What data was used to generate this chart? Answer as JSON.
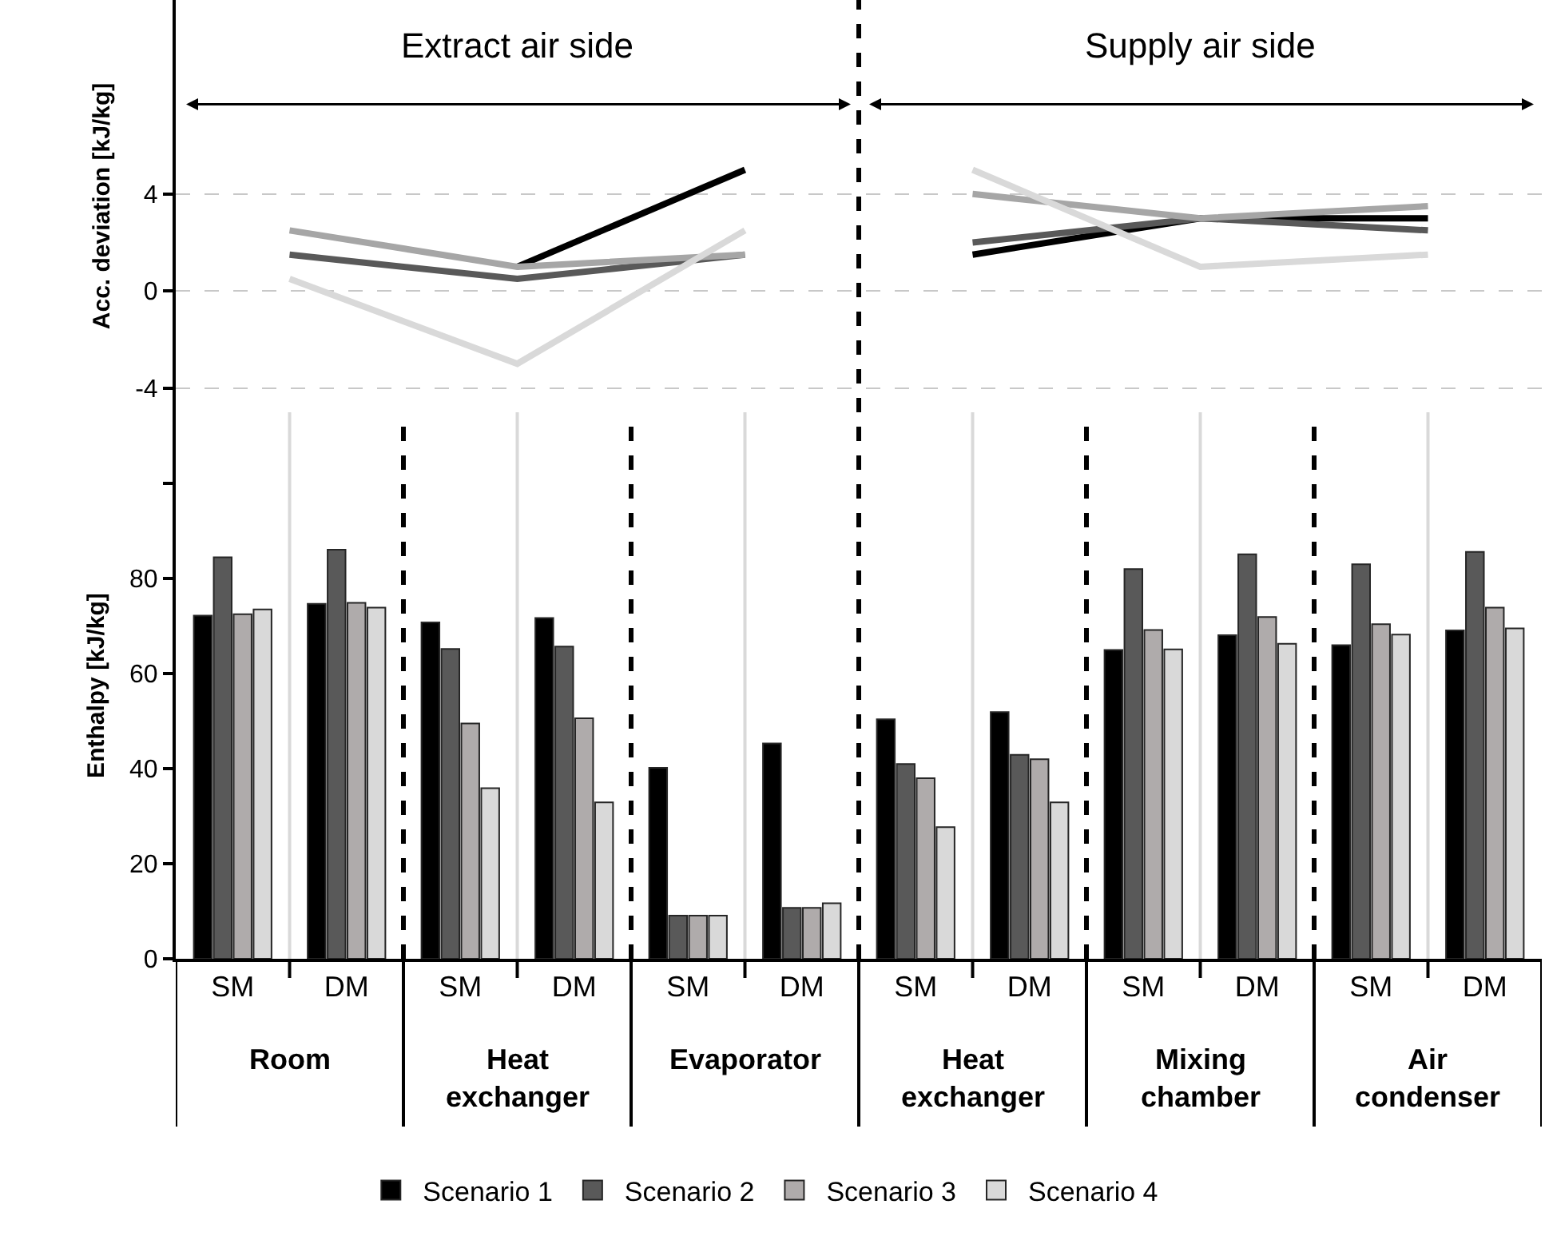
{
  "chart_data": [
    {
      "type": "line",
      "ylabel": "Acc. deviation [kJ/kg]",
      "categories": [
        null,
        null,
        null,
        null,
        null,
        null
      ],
      "ylim": [
        -5,
        12
      ],
      "yticks": [
        -4,
        0,
        4
      ],
      "grid": "y",
      "tick_labels": "y",
      "line_style": "solid",
      "marker": "none",
      "annotations": [
        "Extract air side",
        "Supply air side"
      ],
      "series": [
        {
          "color": "#000000",
          "values": [
            null,
            1.0,
            5.0,
            null,
            null,
            null
          ]
        },
        {
          "color": "#595959",
          "values": [
            1.5,
            0.5,
            1.5,
            null,
            null,
            null
          ]
        },
        {
          "color": "#a6a6a6",
          "values": [
            2.5,
            1.0,
            1.5,
            null,
            null,
            null
          ]
        },
        {
          "color": "#d9d9d9",
          "values": [
            0.5,
            -3.0,
            2.5,
            null,
            null,
            null
          ]
        },
        {
          "color": "#000000",
          "values": [
            null,
            null,
            null,
            1.5,
            3.0,
            3.0
          ]
        },
        {
          "color": "#595959",
          "values": [
            null,
            null,
            null,
            2.0,
            3.0,
            2.5
          ]
        },
        {
          "color": "#a6a6a6",
          "values": [
            null,
            null,
            null,
            4.0,
            3.0,
            3.5
          ]
        },
        {
          "color": "#d9d9d9",
          "values": [
            null,
            null,
            null,
            5.0,
            1.0,
            1.5
          ]
        }
      ]
    },
    {
      "type": "bar",
      "ylabel": "Enthalpy [kJ/kg]",
      "categories": [
        "SM",
        "DM",
        "SM",
        "DM",
        "SM",
        "DM",
        "SM",
        "DM",
        "SM",
        "DM",
        "SM",
        "DM"
      ],
      "ylim": [
        0,
        115
      ],
      "yticks": [
        0,
        20,
        40,
        60,
        80,
        {
          "value": 100,
          "label": null
        }
      ],
      "grid": false,
      "legend": "bottom",
      "annotations": [
        "Room",
        "Heat exchanger",
        "Evaporator",
        "Heat exchanger",
        "Mixing chamber",
        "Air condenser"
      ],
      "series": [
        {
          "name": "Scenario 1",
          "color": "#000000",
          "values": [
            72.2,
            74.7,
            70.8,
            71.7,
            40.2,
            45.3,
            50.4,
            51.9,
            65.0,
            68.1,
            66.0,
            69.1
          ]
        },
        {
          "name": "Scenario 2",
          "color": "#595959",
          "values": [
            84.5,
            86.1,
            65.2,
            65.7,
            9.1,
            10.7,
            41.0,
            42.9,
            82.0,
            85.1,
            83.0,
            85.6
          ]
        },
        {
          "name": "Scenario 3",
          "color": "#afabab",
          "values": [
            72.5,
            74.9,
            49.5,
            50.6,
            9.1,
            10.7,
            38.0,
            42.0,
            69.2,
            71.9,
            70.4,
            73.9
          ]
        },
        {
          "name": "Scenario 4",
          "color": "#d9d9d9",
          "values": [
            73.5,
            73.9,
            35.9,
            32.9,
            9.1,
            11.7,
            27.7,
            32.9,
            65.1,
            66.3,
            68.2,
            69.5
          ]
        }
      ]
    }
  ]
}
